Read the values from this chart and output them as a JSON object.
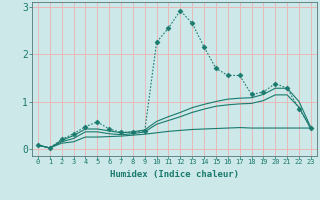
{
  "xlabel": "Humidex (Indice chaleur)",
  "background_color": "#cce8e8",
  "grid_color": "#e8b8b8",
  "line_color": "#1a7a6e",
  "xlim": [
    -0.5,
    23.5
  ],
  "ylim": [
    -0.15,
    3.1
  ],
  "xtick_labels": [
    "0",
    "1",
    "2",
    "3",
    "4",
    "5",
    "6",
    "7",
    "8",
    "9",
    "10",
    "11",
    "12",
    "13",
    "14",
    "15",
    "16",
    "17",
    "18",
    "19",
    "20",
    "21",
    "22",
    "23"
  ],
  "ytick_values": [
    0,
    1,
    2,
    3
  ],
  "series": [
    {
      "x": [
        0,
        1,
        2,
        3,
        4,
        5,
        6,
        7,
        8,
        9,
        10,
        11,
        12,
        13,
        14,
        15,
        16,
        17,
        18,
        19,
        20,
        21,
        22,
        23
      ],
      "y": [
        0.08,
        0.02,
        0.2,
        0.32,
        0.47,
        0.57,
        0.42,
        0.35,
        0.35,
        0.38,
        2.25,
        2.55,
        2.92,
        2.65,
        2.15,
        1.7,
        1.55,
        1.55,
        1.15,
        1.2,
        1.38,
        1.28,
        0.85,
        0.45
      ],
      "style": "dotted",
      "marker": "D",
      "markersize": 2.5
    },
    {
      "x": [
        0,
        1,
        2,
        3,
        4,
        5,
        6,
        7,
        8,
        9,
        10,
        11,
        12,
        13,
        14,
        15,
        16,
        17,
        18,
        19,
        20,
        21,
        22,
        23
      ],
      "y": [
        0.08,
        0.02,
        0.18,
        0.28,
        0.42,
        0.42,
        0.38,
        0.34,
        0.36,
        0.4,
        0.58,
        0.68,
        0.77,
        0.87,
        0.94,
        1.0,
        1.05,
        1.07,
        1.08,
        1.15,
        1.28,
        1.28,
        1.0,
        0.45
      ],
      "style": "solid",
      "marker": null,
      "markersize": 0
    },
    {
      "x": [
        0,
        1,
        2,
        3,
        4,
        5,
        6,
        7,
        8,
        9,
        10,
        11,
        12,
        13,
        14,
        15,
        16,
        17,
        18,
        19,
        20,
        21,
        22,
        23
      ],
      "y": [
        0.08,
        0.02,
        0.15,
        0.22,
        0.36,
        0.36,
        0.32,
        0.3,
        0.32,
        0.36,
        0.52,
        0.6,
        0.68,
        0.77,
        0.84,
        0.9,
        0.93,
        0.95,
        0.96,
        1.02,
        1.14,
        1.14,
        0.88,
        0.42
      ],
      "style": "solid",
      "marker": null,
      "markersize": 0
    },
    {
      "x": [
        0,
        1,
        2,
        3,
        4,
        5,
        6,
        7,
        8,
        9,
        10,
        11,
        12,
        13,
        14,
        15,
        16,
        17,
        18,
        19,
        20,
        21,
        22,
        23
      ],
      "y": [
        0.08,
        0.02,
        0.12,
        0.15,
        0.25,
        0.25,
        0.26,
        0.27,
        0.29,
        0.31,
        0.34,
        0.37,
        0.39,
        0.41,
        0.42,
        0.43,
        0.44,
        0.45,
        0.44,
        0.44,
        0.44,
        0.44,
        0.44,
        0.44
      ],
      "style": "solid",
      "marker": null,
      "markersize": 0
    }
  ]
}
